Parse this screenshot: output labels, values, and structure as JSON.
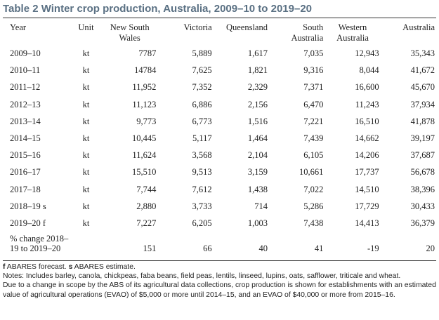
{
  "title": "Table 2 Winter crop production, Australia, 2009–10 to 2019–20",
  "columns": {
    "year": "Year",
    "unit": "Unit",
    "nsw": "New South Wales",
    "vic": "Victoria",
    "qld": "Queensland",
    "sa": "South Australia",
    "wa": "Western Australia",
    "aus": "Australia"
  },
  "rows": [
    {
      "year": "2009–10",
      "unit": "kt",
      "nsw": "7787",
      "vic": "5,889",
      "qld": "1,617",
      "sa": "7,035",
      "wa": "12,943",
      "aus": "35,343"
    },
    {
      "year": "2010–11",
      "unit": "kt",
      "nsw": "14784",
      "vic": "7,625",
      "qld": "1,821",
      "sa": "9,316",
      "wa": "8,044",
      "aus": "41,672"
    },
    {
      "year": "2011–12",
      "unit": "kt",
      "nsw": "11,952",
      "vic": "7,352",
      "qld": "2,329",
      "sa": "7,371",
      "wa": "16,600",
      "aus": "45,670"
    },
    {
      "year": "2012–13",
      "unit": "kt",
      "nsw": "11,123",
      "vic": "6,886",
      "qld": "2,156",
      "sa": "6,470",
      "wa": "11,243",
      "aus": "37,934"
    },
    {
      "year": "2013–14",
      "unit": "kt",
      "nsw": "9,773",
      "vic": "6,773",
      "qld": "1,516",
      "sa": "7,221",
      "wa": "16,510",
      "aus": "41,878"
    },
    {
      "year": "2014–15",
      "unit": "kt",
      "nsw": "10,445",
      "vic": "5,117",
      "qld": "1,464",
      "sa": "7,439",
      "wa": "14,662",
      "aus": "39,197"
    },
    {
      "year": "2015–16",
      "unit": "kt",
      "nsw": "11,624",
      "vic": "3,568",
      "qld": "2,104",
      "sa": "6,105",
      "wa": "14,206",
      "aus": "37,687"
    },
    {
      "year": "2016–17",
      "unit": "kt",
      "nsw": "15,510",
      "vic": "9,513",
      "qld": "3,159",
      "sa": "10,661",
      "wa": "17,737",
      "aus": "56,678"
    },
    {
      "year": "2017–18",
      "unit": "kt",
      "nsw": "7,744",
      "vic": "7,612",
      "qld": "1,438",
      "sa": "7,022",
      "wa": "14,510",
      "aus": "38,396"
    },
    {
      "year": "2018–19 s",
      "unit": "kt",
      "nsw": "2,880",
      "vic": "3,733",
      "qld": "714",
      "sa": "5,286",
      "wa": "17,729",
      "aus": "30,433"
    },
    {
      "year": "2019–20 f",
      "unit": "kt",
      "nsw": "7,227",
      "vic": "6,205",
      "qld": "1,003",
      "sa": "7,438",
      "wa": "14,413",
      "aus": "36,379"
    }
  ],
  "pct_change": {
    "label": "% change 2018–19 to 2019–20",
    "unit": "",
    "nsw": "151",
    "vic": "66",
    "qld": "40",
    "sa": "41",
    "wa": "-19",
    "aus": "20"
  },
  "notes": {
    "line1_f": "f",
    "line1_f_text": " ABARES forecast. ",
    "line1_s": "s",
    "line1_s_text": " ABARES estimate.",
    "line2": "Notes: Includes barley, canola, chickpeas, faba beans, field peas, lentils, linseed, lupins, oats, safflower, triticale and wheat.",
    "line3": "Due to a change in scope by the ABS of its agricultural data collections, crop production is shown for establishments with an estimated value of agricultural operations (EVAO) of $5,000 or more until 2014–15, and an EVAO of $40,000 or more from 2015–16."
  }
}
